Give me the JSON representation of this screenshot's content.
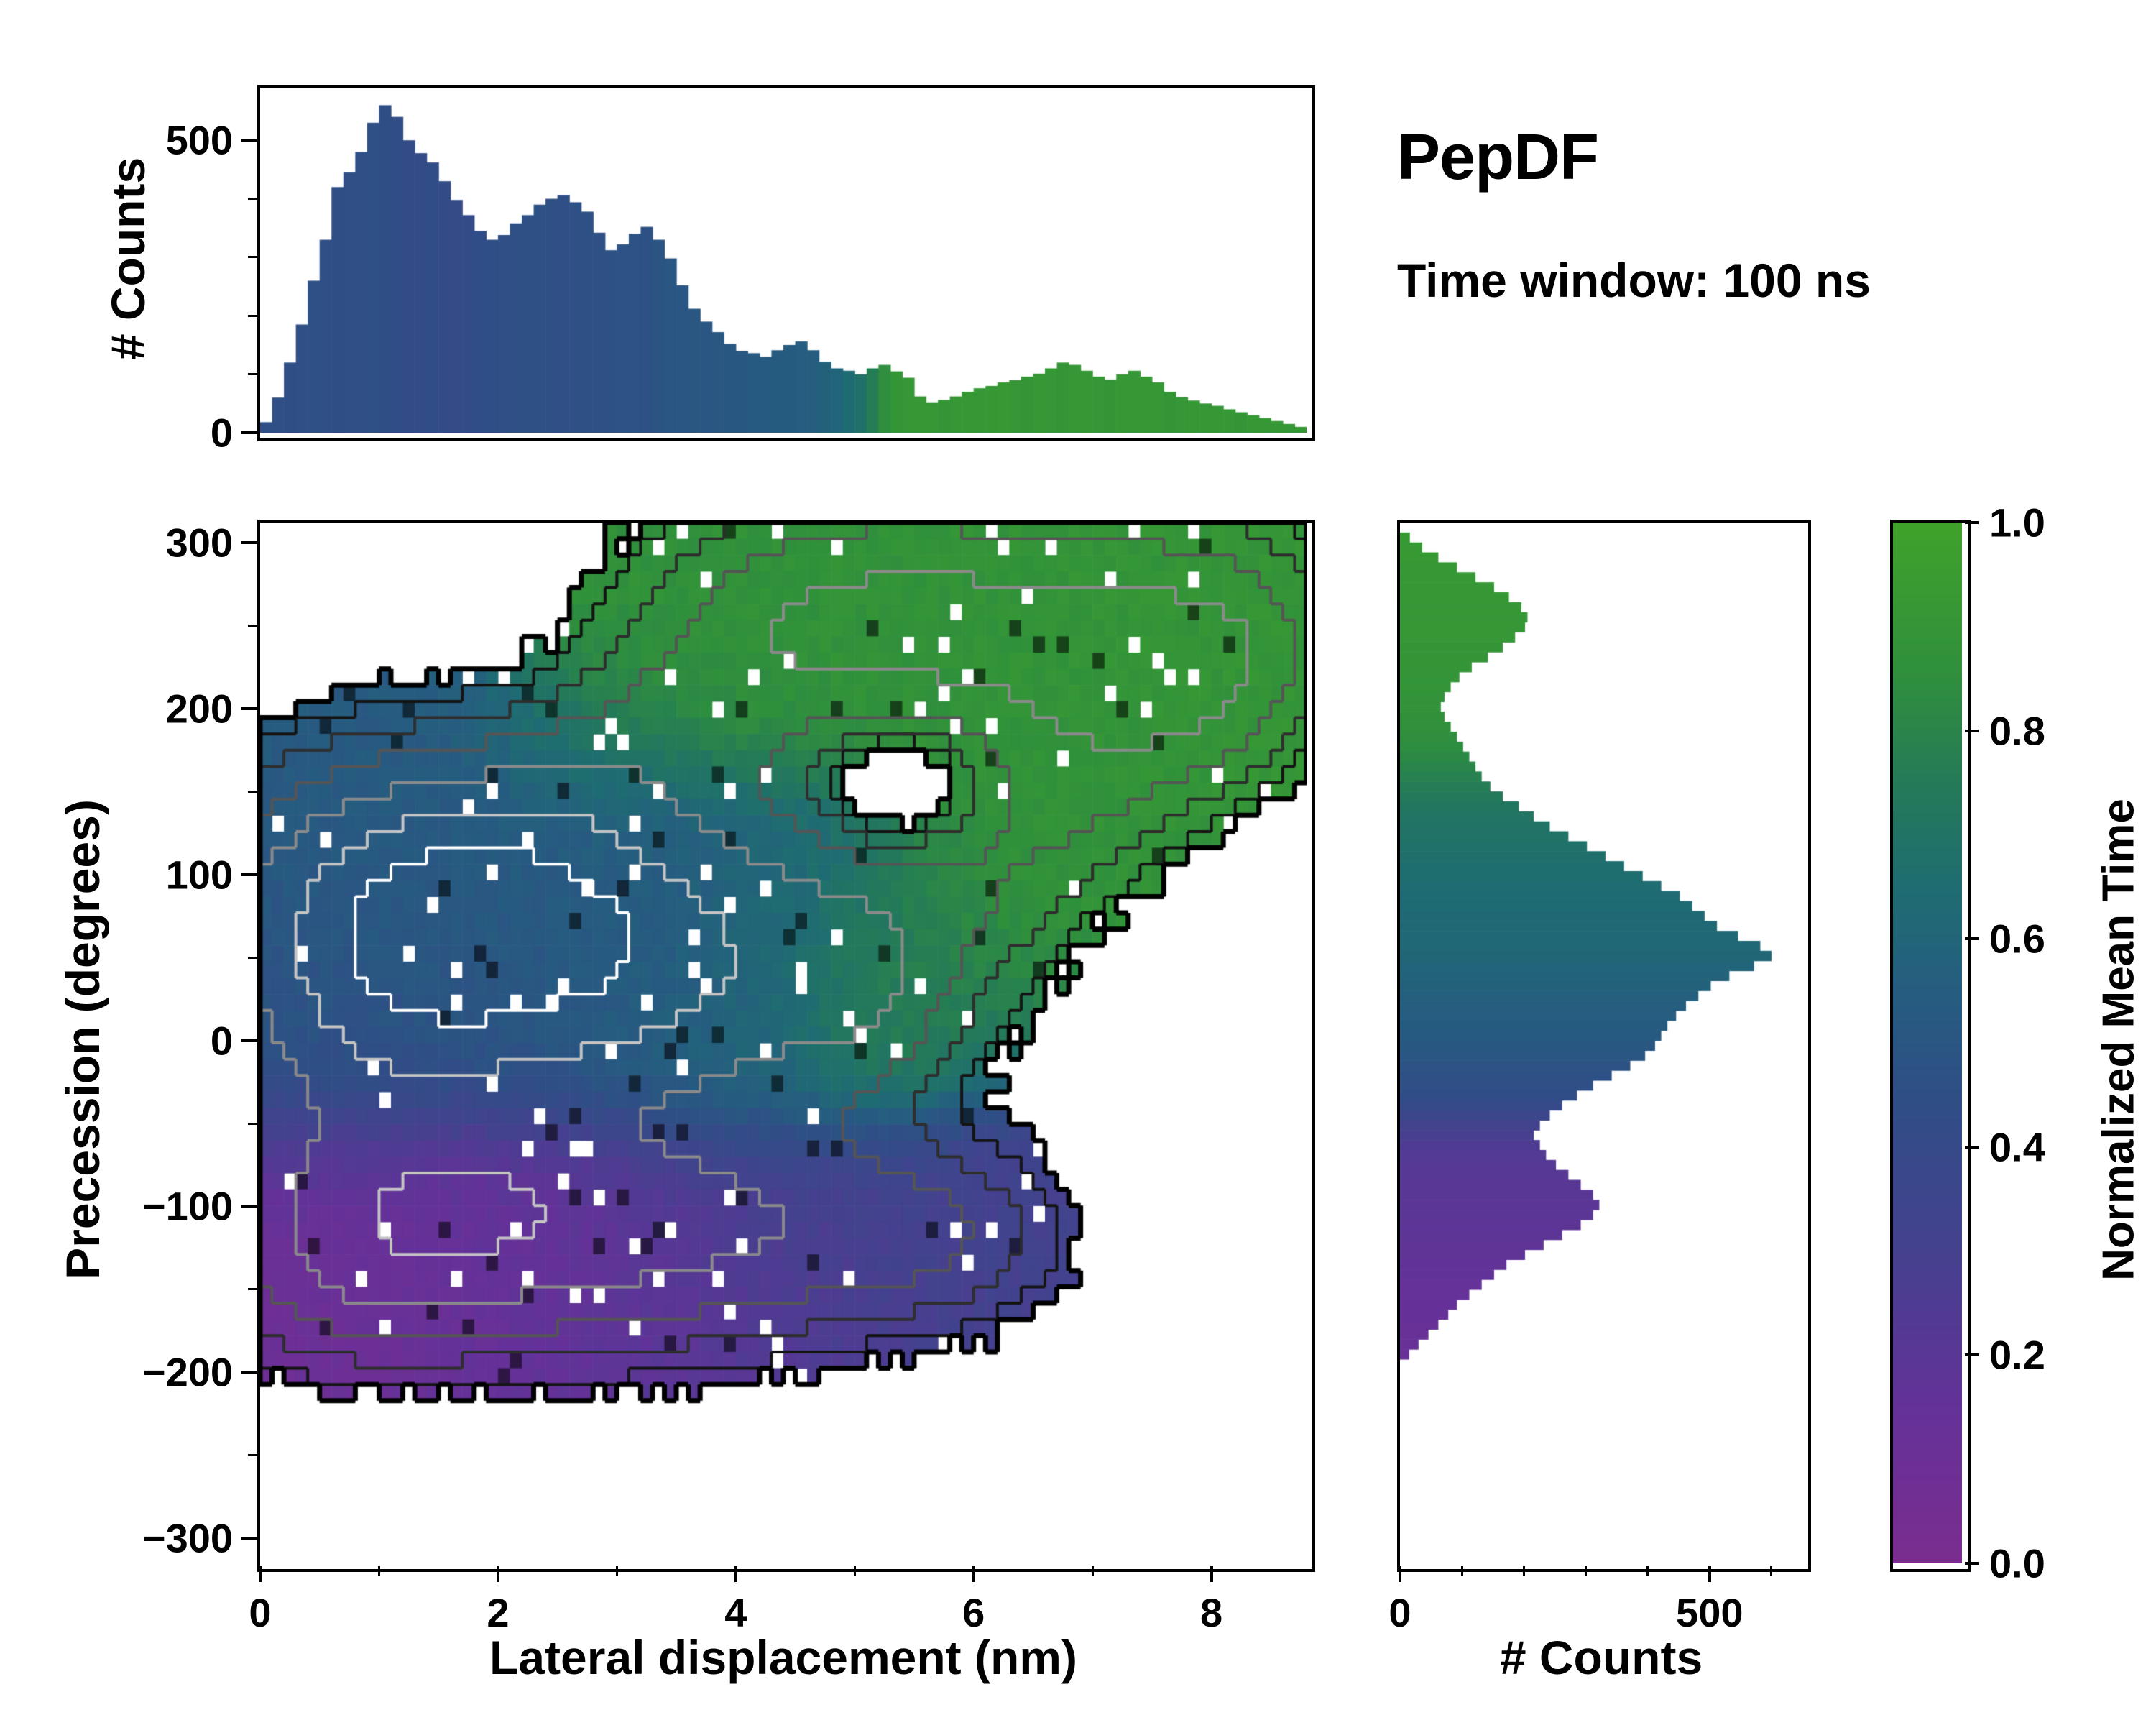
{
  "title": "PepDF",
  "subtitle": "Time window: 100 ns",
  "chart_data": {
    "type": "heatmap",
    "title": "PepDF",
    "annotation": "Time window: 100 ns",
    "colormap_stops": [
      [
        0.0,
        "#7b2d8f"
      ],
      [
        0.15,
        "#643299"
      ],
      [
        0.3,
        "#45418f"
      ],
      [
        0.45,
        "#2f4f86"
      ],
      [
        0.55,
        "#265d80"
      ],
      [
        0.65,
        "#1f6d72"
      ],
      [
        0.75,
        "#247b58"
      ],
      [
        0.85,
        "#2f8f3e"
      ],
      [
        1.0,
        "#3fa32a"
      ]
    ],
    "colorbar": {
      "label": "Normalized Mean Time",
      "ticks": [
        {
          "v": 1.0,
          "label": "1.0"
        },
        {
          "v": 0.8,
          "label": "0.8"
        },
        {
          "v": 0.6,
          "label": "0.6"
        },
        {
          "v": 0.4,
          "label": "0.4"
        },
        {
          "v": 0.2,
          "label": "0.2"
        },
        {
          "v": 0.0,
          "label": "0.0"
        }
      ]
    },
    "main": {
      "xlabel": "Lateral displacement (nm)",
      "ylabel": "Precession (degrees)",
      "xlim": [
        0,
        8.8
      ],
      "ylim": [
        -315,
        312
      ],
      "xticks": [
        {
          "v": 0,
          "label": "0"
        },
        {
          "v": 2,
          "label": "2"
        },
        {
          "v": 4,
          "label": "4"
        },
        {
          "v": 6,
          "label": "6"
        },
        {
          "v": 8,
          "label": "8"
        }
      ],
      "xminor": [
        1,
        3,
        5,
        7
      ],
      "yticks": [
        {
          "v": 300,
          "label": "300"
        },
        {
          "v": 200,
          "label": "200"
        },
        {
          "v": 100,
          "label": "100"
        },
        {
          "v": 0,
          "label": "0"
        },
        {
          "v": -100,
          "label": "−100"
        },
        {
          "v": -200,
          "label": "−200"
        },
        {
          "v": -300,
          "label": "−300"
        }
      ],
      "yminor": [
        250,
        150,
        50,
        -50,
        -150,
        -250
      ],
      "color_meaning": "Normalized Mean Time",
      "grid": {
        "nx": 88,
        "ny": 64
      },
      "occupancy_threshold": 0.055,
      "boundary": {
        "color": "#000000",
        "width": 7
      },
      "contour_levels": [
        {
          "v": 0.1,
          "color": "#141414"
        },
        {
          "v": 0.2,
          "color": "#2e2e2e"
        },
        {
          "v": 0.38,
          "color": "#555555"
        },
        {
          "v": 0.7,
          "color": "#8a8a8a"
        },
        {
          "v": 1.15,
          "color": "#c4c4c4"
        },
        {
          "v": 1.65,
          "color": "#ffffff"
        }
      ],
      "clusters": [
        {
          "x": 1.4,
          "y": 70,
          "sx": 1.05,
          "sy": 52,
          "w": 1.0,
          "t": 0.52
        },
        {
          "x": 2.6,
          "y": 45,
          "sx": 1.0,
          "sy": 55,
          "w": 0.85,
          "t": 0.5
        },
        {
          "x": 1.0,
          "y": 10,
          "sx": 0.9,
          "sy": 60,
          "w": 0.7,
          "t": 0.45
        },
        {
          "x": 2.0,
          "y": 110,
          "sx": 1.3,
          "sy": 45,
          "w": 0.6,
          "t": 0.55
        },
        {
          "x": 3.8,
          "y": 30,
          "sx": 1.0,
          "sy": 65,
          "w": 0.55,
          "t": 0.62
        },
        {
          "x": 4.8,
          "y": 60,
          "sx": 0.7,
          "sy": 50,
          "w": 0.35,
          "t": 0.68
        },
        {
          "x": 1.5,
          "y": -100,
          "sx": 1.1,
          "sy": 42,
          "w": 0.75,
          "t": 0.1
        },
        {
          "x": 2.8,
          "y": -120,
          "sx": 1.2,
          "sy": 42,
          "w": 0.55,
          "t": 0.18
        },
        {
          "x": 0.8,
          "y": -140,
          "sx": 0.7,
          "sy": 35,
          "w": 0.35,
          "t": 0.08
        },
        {
          "x": 4.6,
          "y": -110,
          "sx": 1.0,
          "sy": 38,
          "w": 0.4,
          "t": 0.3
        },
        {
          "x": 5.7,
          "y": -120,
          "sx": 0.6,
          "sy": 30,
          "w": 0.22,
          "t": 0.32
        },
        {
          "x": 4.6,
          "y": 250,
          "sx": 0.9,
          "sy": 45,
          "w": 0.5,
          "t": 0.87
        },
        {
          "x": 5.8,
          "y": 240,
          "sx": 1.0,
          "sy": 50,
          "w": 0.55,
          "t": 0.88
        },
        {
          "x": 7.2,
          "y": 250,
          "sx": 0.9,
          "sy": 45,
          "w": 0.5,
          "t": 0.9
        },
        {
          "x": 8.2,
          "y": 240,
          "sx": 0.5,
          "sy": 40,
          "w": 0.3,
          "t": 0.9
        },
        {
          "x": 3.5,
          "y": 190,
          "sx": 0.6,
          "sy": 35,
          "w": 0.3,
          "t": 0.85
        },
        {
          "x": 2.6,
          "y": 160,
          "sx": 0.5,
          "sy": 25,
          "w": 0.18,
          "t": 0.83
        },
        {
          "x": 5.1,
          "y": 30,
          "sx": 0.45,
          "sy": 40,
          "w": 0.28,
          "t": 0.92
        },
        {
          "x": 5.9,
          "y": 90,
          "sx": 0.5,
          "sy": 40,
          "w": 0.28,
          "t": 0.88
        },
        {
          "x": 6.6,
          "y": 140,
          "sx": 0.5,
          "sy": 40,
          "w": 0.3,
          "t": 0.88
        },
        {
          "x": 7.3,
          "y": 180,
          "sx": 0.5,
          "sy": 40,
          "w": 0.3,
          "t": 0.88
        },
        {
          "x": 7.9,
          "y": 210,
          "sx": 0.5,
          "sy": 35,
          "w": 0.28,
          "t": 0.89
        },
        {
          "x": 5.4,
          "y": 160,
          "sx": 0.55,
          "sy": 38,
          "w": -0.38,
          "t": 0.0
        }
      ]
    },
    "top_hist": {
      "ylabel": "# Counts",
      "ylim": [
        0,
        590
      ],
      "yticks": [
        {
          "v": 500,
          "label": "500"
        },
        {
          "v": 0,
          "label": "0"
        }
      ],
      "yminor": [
        100,
        200,
        300,
        400
      ],
      "x0": 0,
      "bin_width": 0.1,
      "values": [
        18,
        60,
        120,
        185,
        260,
        330,
        420,
        445,
        480,
        530,
        560,
        540,
        500,
        478,
        462,
        430,
        398,
        372,
        345,
        330,
        338,
        358,
        372,
        390,
        400,
        406,
        394,
        378,
        342,
        312,
        322,
        340,
        352,
        330,
        298,
        252,
        212,
        190,
        172,
        152,
        140,
        136,
        130,
        141,
        150,
        156,
        141,
        121,
        110,
        106,
        100,
        110,
        116,
        105,
        94,
        62,
        52,
        56,
        62,
        70,
        76,
        80,
        86,
        90,
        96,
        101,
        110,
        120,
        116,
        106,
        96,
        91,
        100,
        106,
        96,
        86,
        70,
        61,
        55,
        50,
        46,
        40,
        35,
        30,
        25,
        20,
        15,
        10
      ],
      "tvals": [
        0.45,
        0.45,
        0.44,
        0.45,
        0.46,
        0.45,
        0.44,
        0.45,
        0.45,
        0.46,
        0.44,
        0.43,
        0.42,
        0.42,
        0.43,
        0.42,
        0.41,
        0.42,
        0.43,
        0.44,
        0.45,
        0.46,
        0.46,
        0.47,
        0.46,
        0.45,
        0.46,
        0.47,
        0.46,
        0.47,
        0.48,
        0.48,
        0.47,
        0.49,
        0.5,
        0.5,
        0.51,
        0.5,
        0.51,
        0.52,
        0.52,
        0.53,
        0.53,
        0.54,
        0.54,
        0.55,
        0.56,
        0.58,
        0.6,
        0.64,
        0.68,
        0.76,
        0.85,
        0.9,
        0.91,
        0.92,
        0.91,
        0.9,
        0.91,
        0.92,
        0.91,
        0.92,
        0.93,
        0.91,
        0.9,
        0.92,
        0.91,
        0.9,
        0.91,
        0.92,
        0.91,
        0.9,
        0.92,
        0.91,
        0.92,
        0.91,
        0.9,
        0.91,
        0.92,
        0.91,
        0.92,
        0.91,
        0.9,
        0.92,
        0.91,
        0.92,
        0.91,
        0.92
      ]
    },
    "right_hist": {
      "xlabel": "# Counts",
      "xlim": [
        0,
        650
      ],
      "xticks": [
        {
          "v": 0,
          "label": "0"
        },
        {
          "v": 500,
          "label": "500"
        }
      ],
      "xminor": [
        100,
        200,
        300,
        400,
        600
      ],
      "y0": -300,
      "bin_width": 6,
      "values": [
        0,
        0,
        0,
        0,
        0,
        0,
        0,
        0,
        0,
        0,
        0,
        0,
        0,
        0,
        0,
        0,
        0,
        0,
        15,
        30,
        46,
        62,
        78,
        92,
        112,
        132,
        152,
        172,
        202,
        232,
        262,
        292,
        312,
        322,
        312,
        292,
        272,
        252,
        236,
        226,
        216,
        226,
        242,
        262,
        286,
        312,
        342,
        372,
        396,
        412,
        422,
        432,
        446,
        462,
        482,
        502,
        532,
        572,
        600,
        582,
        546,
        512,
        492,
        472,
        452,
        422,
        392,
        362,
        332,
        302,
        272,
        242,
        216,
        192,
        166,
        146,
        132,
        122,
        112,
        102,
        92,
        82,
        72,
        66,
        72,
        82,
        96,
        116,
        142,
        166,
        186,
        202,
        206,
        196,
        176,
        152,
        122,
        92,
        62,
        36,
        16
      ],
      "tvals": [
        0.5,
        0.5,
        0.5,
        0.5,
        0.5,
        0.5,
        0.5,
        0.5,
        0.5,
        0.5,
        0.5,
        0.5,
        0.5,
        0.5,
        0.5,
        0.5,
        0.5,
        0.5,
        0.12,
        0.12,
        0.13,
        0.13,
        0.14,
        0.14,
        0.15,
        0.15,
        0.16,
        0.16,
        0.17,
        0.17,
        0.18,
        0.18,
        0.19,
        0.19,
        0.2,
        0.2,
        0.21,
        0.22,
        0.23,
        0.25,
        0.28,
        0.32,
        0.36,
        0.4,
        0.43,
        0.45,
        0.47,
        0.48,
        0.5,
        0.52,
        0.53,
        0.54,
        0.55,
        0.56,
        0.57,
        0.58,
        0.59,
        0.6,
        0.61,
        0.62,
        0.62,
        0.63,
        0.63,
        0.64,
        0.64,
        0.65,
        0.66,
        0.66,
        0.67,
        0.68,
        0.69,
        0.7,
        0.71,
        0.72,
        0.74,
        0.76,
        0.78,
        0.8,
        0.82,
        0.84,
        0.85,
        0.86,
        0.87,
        0.88,
        0.88,
        0.89,
        0.89,
        0.9,
        0.9,
        0.9,
        0.91,
        0.91,
        0.91,
        0.91,
        0.92,
        0.92,
        0.92,
        0.92,
        0.93,
        0.93,
        0.93
      ]
    }
  }
}
